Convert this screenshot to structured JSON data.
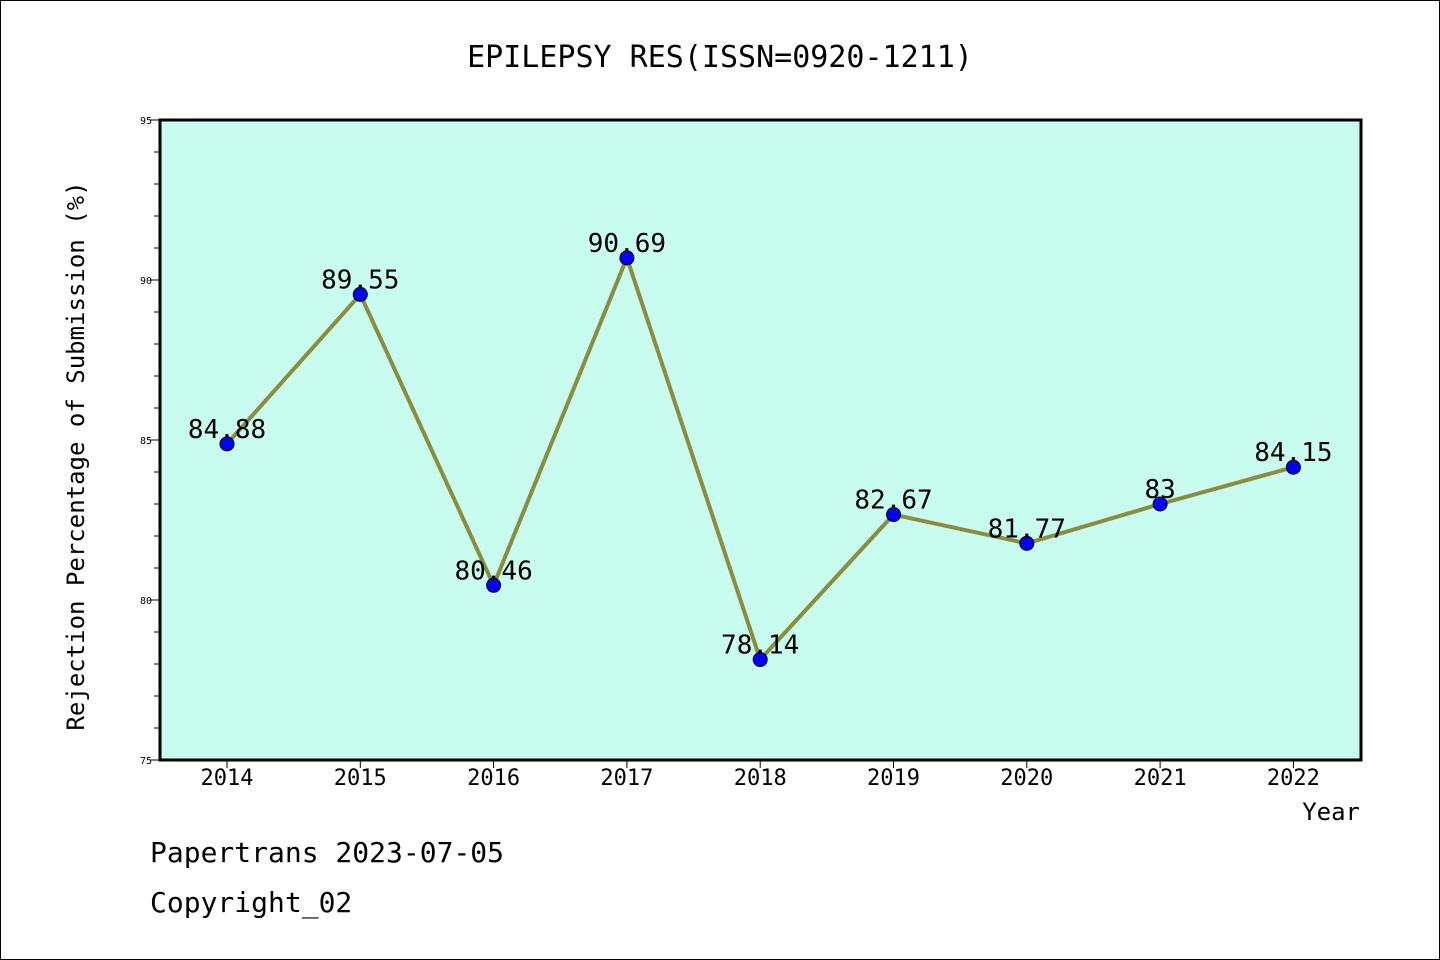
{
  "chart_data": {
    "type": "line",
    "title": "EPILEPSY RES(ISSN=0920-1211)",
    "xlabel": "Year",
    "ylabel": "Rejection Percentage of Submission (%)",
    "categories": [
      "2014",
      "2015",
      "2016",
      "2017",
      "2018",
      "2019",
      "2020",
      "2021",
      "2022"
    ],
    "values": [
      84.88,
      89.55,
      80.46,
      90.69,
      78.14,
      82.67,
      81.77,
      83,
      84.15
    ],
    "data_labels": [
      "84.88",
      "89.55",
      "80.46",
      "90.69",
      "78.14",
      "82.67",
      "81.77",
      "83",
      "84.15"
    ],
    "ylim": [
      75,
      95
    ],
    "yticks": [
      "75",
      "80",
      "85",
      "90",
      "95"
    ],
    "legend": "none",
    "grid": false,
    "colors": {
      "plot_background": "#c8fcee",
      "line": "#8b8c3c",
      "marker": "#0000ff"
    }
  },
  "footer": {
    "line1": "Papertrans 2023-07-05",
    "line2": "Copyright_02"
  }
}
